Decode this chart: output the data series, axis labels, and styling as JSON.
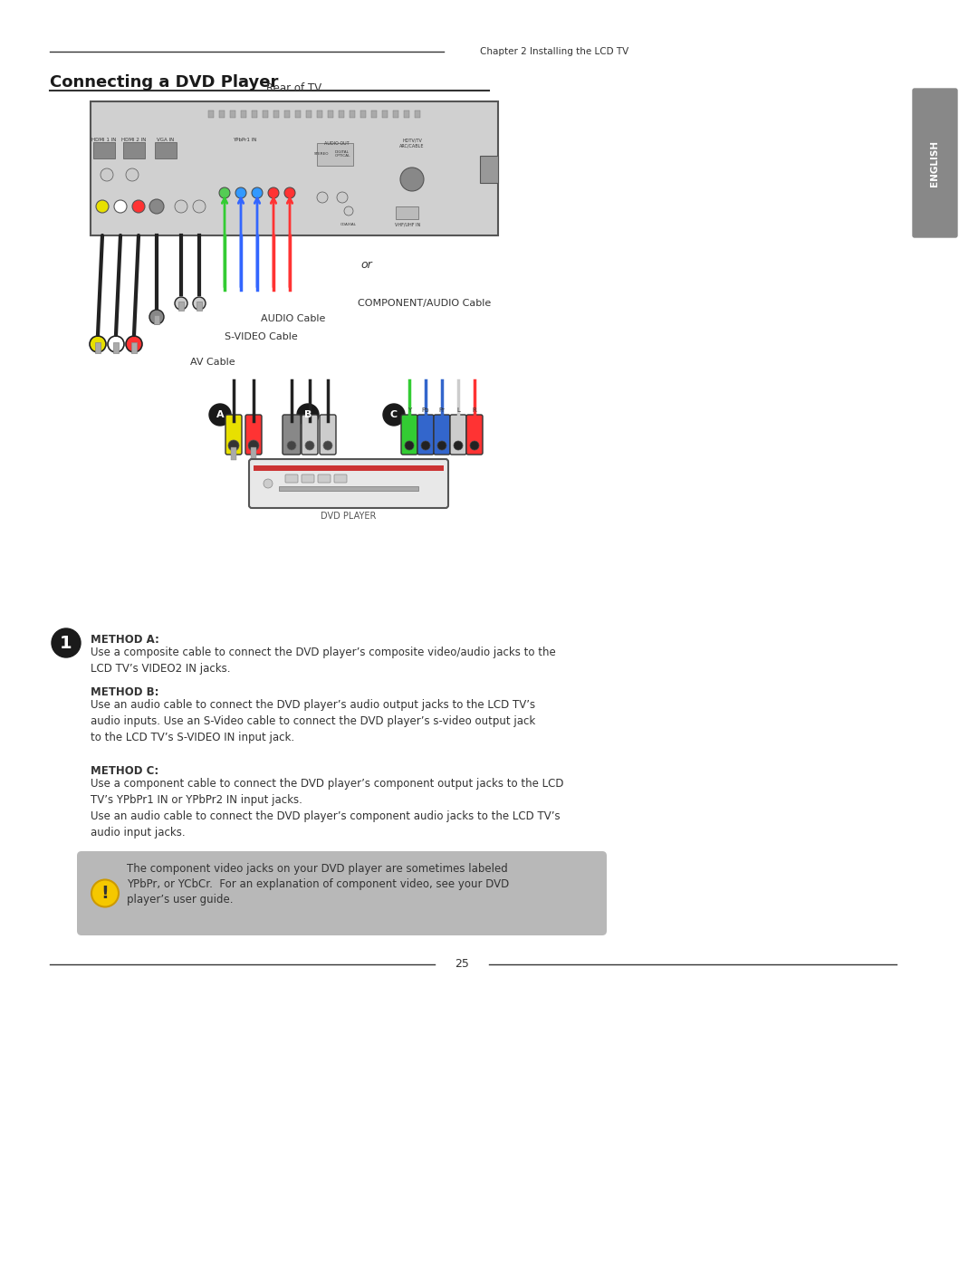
{
  "page_title": "Connecting a DVD Player",
  "chapter_text": "Chapter 2 Installing the LCD TV",
  "page_number": "25",
  "bg_color": "#ffffff",
  "header_line_color": "#333333",
  "title_font_size": 14,
  "chapter_font_size": 8,
  "body_font_size": 9,
  "label_font_size": 8,
  "sidebar_color": "#888888",
  "sidebar_text": "ENGLISH",
  "method_a_title": "METHOD A:",
  "method_a_body": "Use a composite cable to connect the DVD player’s composite video/audio jacks to the\nLCD TV’s VIDEO2 IN jacks.",
  "method_b_title": "METHOD B:",
  "method_b_body": "Use an audio cable to connect the DVD player’s audio output jacks to the LCD TV’s\naudio inputs. Use an S-Video cable to connect the DVD player’s s-video output jack\nto the LCD TV’s S-VIDEO IN input jack.",
  "method_c_title": "METHOD C:",
  "method_c_body": "Use a component cable to connect the DVD player’s component output jacks to the LCD\nTV’s YPbPr1 IN or YPbPr2 IN input jacks.\nUse an audio cable to connect the DVD player’s component audio jacks to the LCD TV’s\naudio input jacks.",
  "note_text": "The component video jacks on your DVD player are sometimes labeled\nYPbPr, or YCbCr.  For an explanation of component video, see your DVD\nplayer’s user guide.",
  "note_bg": "#b8b8b8",
  "diagram_labels": {
    "rear_of_tv": "Rear of TV",
    "audio_cable": "AUDIO Cable",
    "svideo_cable": "S-VIDEO Cable",
    "av_cable": "AV Cable",
    "component_cable": "COMPONENT/AUDIO Cable",
    "dvd_player": "DVD PLAYER",
    "or": "or"
  },
  "step_circle_color": "#1a1a1a",
  "step_number": "1"
}
